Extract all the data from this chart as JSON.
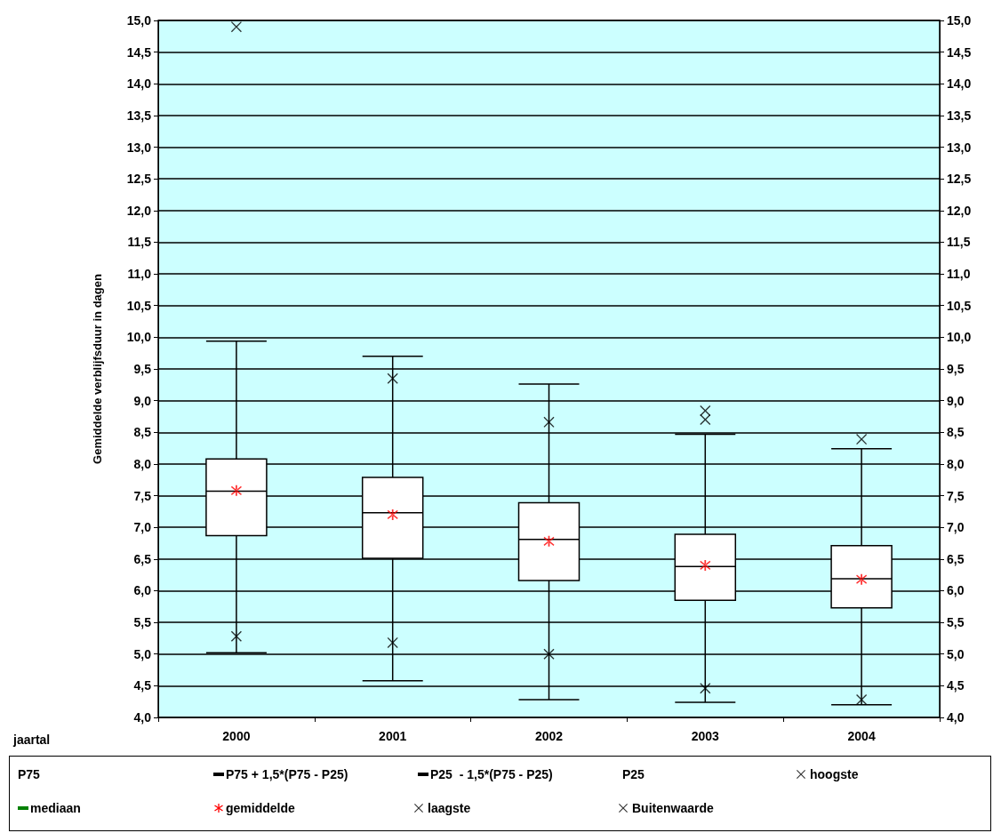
{
  "chart_data": {
    "type": "box",
    "ylabel": "Gemiddelde verblijfsduur in dagen",
    "categories": [
      "2000",
      "2001",
      "2002",
      "2003",
      "2004"
    ],
    "boxes": [
      {
        "low": 5.02,
        "q1": 6.87,
        "median": 7.57,
        "q3": 8.08,
        "high": 9.94,
        "mean": 7.58
      },
      {
        "low": 4.58,
        "q1": 6.51,
        "median": 7.23,
        "q3": 7.79,
        "high": 9.7,
        "mean": 7.2
      },
      {
        "low": 4.28,
        "q1": 6.16,
        "median": 6.81,
        "q3": 7.39,
        "high": 9.26,
        "mean": 6.78
      },
      {
        "low": 4.24,
        "q1": 5.85,
        "median": 6.38,
        "q3": 6.89,
        "high": 8.47,
        "mean": 6.4
      },
      {
        "low": 4.2,
        "q1": 5.73,
        "median": 6.19,
        "q3": 6.71,
        "high": 8.24,
        "mean": 6.18
      }
    ],
    "series": [
      {
        "name": "hoogste",
        "type": "scatter",
        "color": "#000000",
        "values": [
          null,
          9.35,
          8.66,
          8.7,
          8.39
        ]
      },
      {
        "name": "laagste",
        "type": "scatter",
        "color": "#000000",
        "values": [
          5.28,
          5.18,
          5.0,
          4.46,
          4.28
        ]
      },
      {
        "name": "Buitenwaarde",
        "type": "scatter",
        "color": "#000000",
        "values": [
          14.9,
          null,
          null,
          8.84,
          null
        ]
      }
    ],
    "marker": "cross",
    "annotations": [
      "jaartal",
      "P75",
      "P75 + 1,5*(P75 - P25)",
      "P25  - 1,5*(P75 - P25)",
      "P25",
      "mediaan",
      "gemiddelde"
    ],
    "ylim": [
      4,
      15
    ],
    "yticks": [
      {
        "value": 4,
        "label": "4,0"
      },
      {
        "value": 4.5,
        "label": "4,5"
      },
      {
        "value": 5,
        "label": "5,0"
      },
      {
        "value": 5.5,
        "label": "5,5"
      },
      {
        "value": 6,
        "label": "6,0"
      },
      {
        "value": 6.5,
        "label": "6,5"
      },
      {
        "value": 7,
        "label": "7,0"
      },
      {
        "value": 7.5,
        "label": "7,5"
      },
      {
        "value": 8,
        "label": "8,0"
      },
      {
        "value": 8.5,
        "label": "8,5"
      },
      {
        "value": 9,
        "label": "9,0"
      },
      {
        "value": 9.5,
        "label": "9,5"
      },
      {
        "value": 10,
        "label": "10,0"
      },
      {
        "value": 10.5,
        "label": "10,5"
      },
      {
        "value": 11,
        "label": "11,0"
      },
      {
        "value": 11.5,
        "label": "11,5"
      },
      {
        "value": 12,
        "label": "12,0"
      },
      {
        "value": 12.5,
        "label": "12,5"
      },
      {
        "value": 13,
        "label": "13,0"
      },
      {
        "value": 13.5,
        "label": "13,5"
      },
      {
        "value": 14,
        "label": "14,0"
      },
      {
        "value": 14.5,
        "label": "14,5"
      },
      {
        "value": 15,
        "label": "15,0"
      }
    ],
    "y2lim": [
      4,
      15
    ],
    "y2ticks": [
      {
        "value": 4,
        "label": "4,0"
      },
      {
        "value": 4.5,
        "label": "4,5"
      },
      {
        "value": 5,
        "label": "5,0"
      },
      {
        "value": 5.5,
        "label": "5,5"
      },
      {
        "value": 6,
        "label": "6,0"
      },
      {
        "value": 6.5,
        "label": "6,5"
      },
      {
        "value": 7,
        "label": "7,0"
      },
      {
        "value": 7.5,
        "label": "7,5"
      },
      {
        "value": 8,
        "label": "8,0"
      },
      {
        "value": 8.5,
        "label": "8,5"
      },
      {
        "value": 9,
        "label": "9,0"
      },
      {
        "value": 9.5,
        "label": "9,5"
      },
      {
        "value": 10,
        "label": "10,0"
      },
      {
        "value": 10.5,
        "label": "10,5"
      },
      {
        "value": 11,
        "label": "11,0"
      },
      {
        "value": 11.5,
        "label": "11,5"
      },
      {
        "value": 12,
        "label": "12,0"
      },
      {
        "value": 12.5,
        "label": "12,5"
      },
      {
        "value": 13,
        "label": "13,0"
      },
      {
        "value": 13.5,
        "label": "13,5"
      },
      {
        "value": 14,
        "label": "14,0"
      },
      {
        "value": 14.5,
        "label": "14,5"
      },
      {
        "value": 15,
        "label": "15,0"
      }
    ],
    "grid": "y",
    "legend": "bottom"
  }
}
